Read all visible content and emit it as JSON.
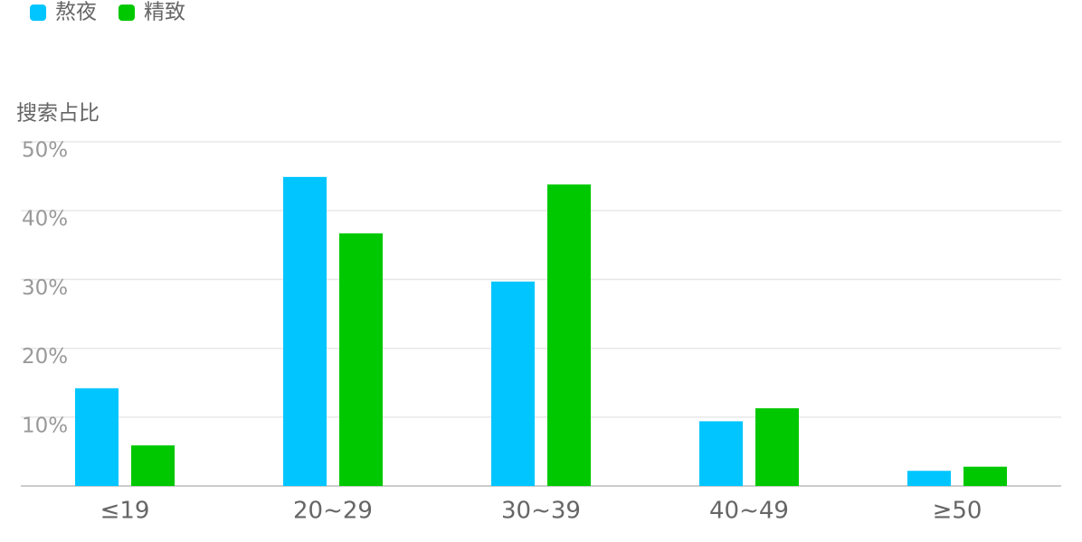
{
  "chart_data": {
    "type": "bar",
    "y_axis_label": "搜索占比",
    "categories": [
      "≤19",
      "20~29",
      "30~39",
      "40~49",
      "≥50"
    ],
    "series": [
      {
        "name": "熬夜",
        "color": "#00c5ff",
        "values": [
          14.2,
          44.9,
          29.7,
          9.4,
          2.2
        ]
      },
      {
        "name": "精致",
        "color": "#00c800",
        "values": [
          5.9,
          36.7,
          43.8,
          11.3,
          2.8
        ]
      }
    ],
    "ylim": [
      0,
      50
    ],
    "yticks": [
      {
        "value": 10,
        "label": "10%"
      },
      {
        "value": 20,
        "label": "20%"
      },
      {
        "value": 30,
        "label": "30%"
      },
      {
        "value": 40,
        "label": "40%"
      },
      {
        "value": 50,
        "label": "50%"
      }
    ],
    "grid": true,
    "legend": "top-left"
  }
}
